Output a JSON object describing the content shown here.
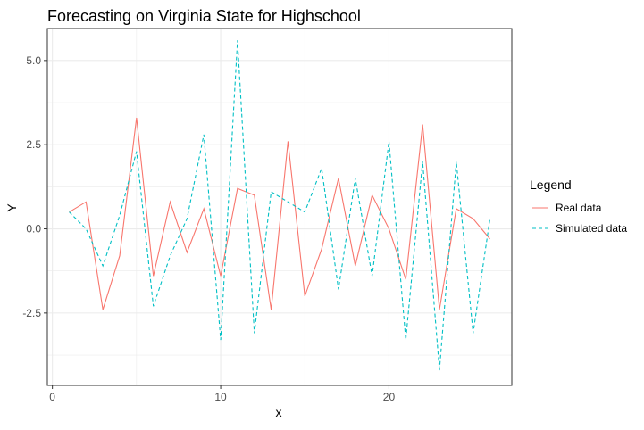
{
  "chart_data": {
    "type": "line",
    "title": "Forecasting on Virginia State for Highschool",
    "xlabel": "x",
    "ylabel": "Y",
    "xlim": [
      -0.3,
      27.3
    ],
    "ylim": [
      -4.65,
      5.95
    ],
    "x_ticks": [
      0,
      10,
      20
    ],
    "x_tick_labels": [
      "0",
      "10",
      "20"
    ],
    "y_ticks": [
      -2.5,
      0,
      2.5,
      5
    ],
    "y_tick_labels": [
      "-2.5",
      "0.0",
      "2.5",
      "5.0"
    ],
    "grid": true,
    "legend": {
      "title": "Legend",
      "position": "right"
    },
    "x": [
      1,
      2,
      3,
      4,
      5,
      6,
      7,
      8,
      9,
      10,
      11,
      12,
      13,
      14,
      15,
      16,
      17,
      18,
      19,
      20,
      21,
      22,
      23,
      24,
      25,
      26
    ],
    "series": [
      {
        "name": "Real data",
        "color": "#F8766D",
        "dash": "solid",
        "values": [
          0.5,
          0.8,
          -2.4,
          -0.8,
          3.3,
          -1.4,
          0.8,
          -0.7,
          0.6,
          -1.4,
          1.2,
          1.0,
          -2.4,
          2.6,
          -2.0,
          -0.6,
          1.5,
          -1.1,
          1.0,
          0.0,
          -1.5,
          3.1,
          -2.4,
          0.6,
          0.3,
          -0.3
        ]
      },
      {
        "name": "Simulated data",
        "color": "#00BFC4",
        "dash": "dashed",
        "values": [
          0.5,
          0.0,
          -1.1,
          0.4,
          2.3,
          -2.3,
          -0.8,
          0.3,
          2.8,
          -3.3,
          5.6,
          -3.1,
          1.1,
          0.8,
          0.5,
          1.8,
          -1.8,
          1.5,
          -1.4,
          2.6,
          -3.3,
          2.0,
          -4.2,
          2.0,
          -3.1,
          0.3
        ]
      }
    ]
  }
}
